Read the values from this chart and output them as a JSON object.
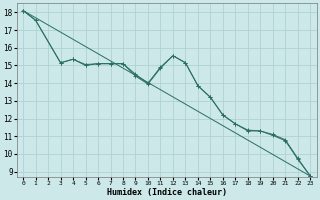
{
  "xlabel": "Humidex (Indice chaleur)",
  "xlim": [
    -0.5,
    23.5
  ],
  "ylim": [
    8.7,
    18.5
  ],
  "yticks": [
    9,
    10,
    11,
    12,
    13,
    14,
    15,
    16,
    17,
    18
  ],
  "xticks": [
    0,
    1,
    2,
    3,
    4,
    5,
    6,
    7,
    8,
    9,
    10,
    11,
    12,
    13,
    14,
    15,
    16,
    17,
    18,
    19,
    20,
    21,
    22,
    23
  ],
  "bg_color": "#cce8e8",
  "grid_color": "#aacece",
  "line_color": "#2a6e64",
  "line1_x": [
    0,
    1,
    3,
    4,
    5,
    6,
    7,
    8,
    9,
    10,
    11,
    12,
    13,
    14,
    15,
    16,
    17,
    18,
    19,
    20,
    21,
    22,
    23
  ],
  "line1_y": [
    18.1,
    17.55,
    15.15,
    15.35,
    15.05,
    15.1,
    15.1,
    15.1,
    14.4,
    13.95,
    14.85,
    15.55,
    15.15,
    13.85,
    13.2,
    12.2,
    11.7,
    11.3,
    11.3,
    11.05,
    10.75,
    9.7,
    8.75
  ],
  "line2_x": [
    0,
    1,
    3,
    4,
    5,
    6,
    7,
    8,
    9,
    10,
    11,
    12,
    13,
    14,
    15,
    16,
    17,
    18,
    19,
    20,
    21,
    22,
    23
  ],
  "line2_y": [
    18.1,
    17.55,
    15.15,
    15.35,
    15.0,
    15.1,
    15.1,
    15.1,
    14.5,
    14.0,
    14.9,
    15.55,
    15.15,
    13.85,
    13.2,
    12.2,
    11.7,
    11.35,
    11.3,
    11.1,
    10.8,
    9.75,
    8.75
  ],
  "line3_x": [
    0,
    23
  ],
  "line3_y": [
    18.1,
    8.75
  ]
}
